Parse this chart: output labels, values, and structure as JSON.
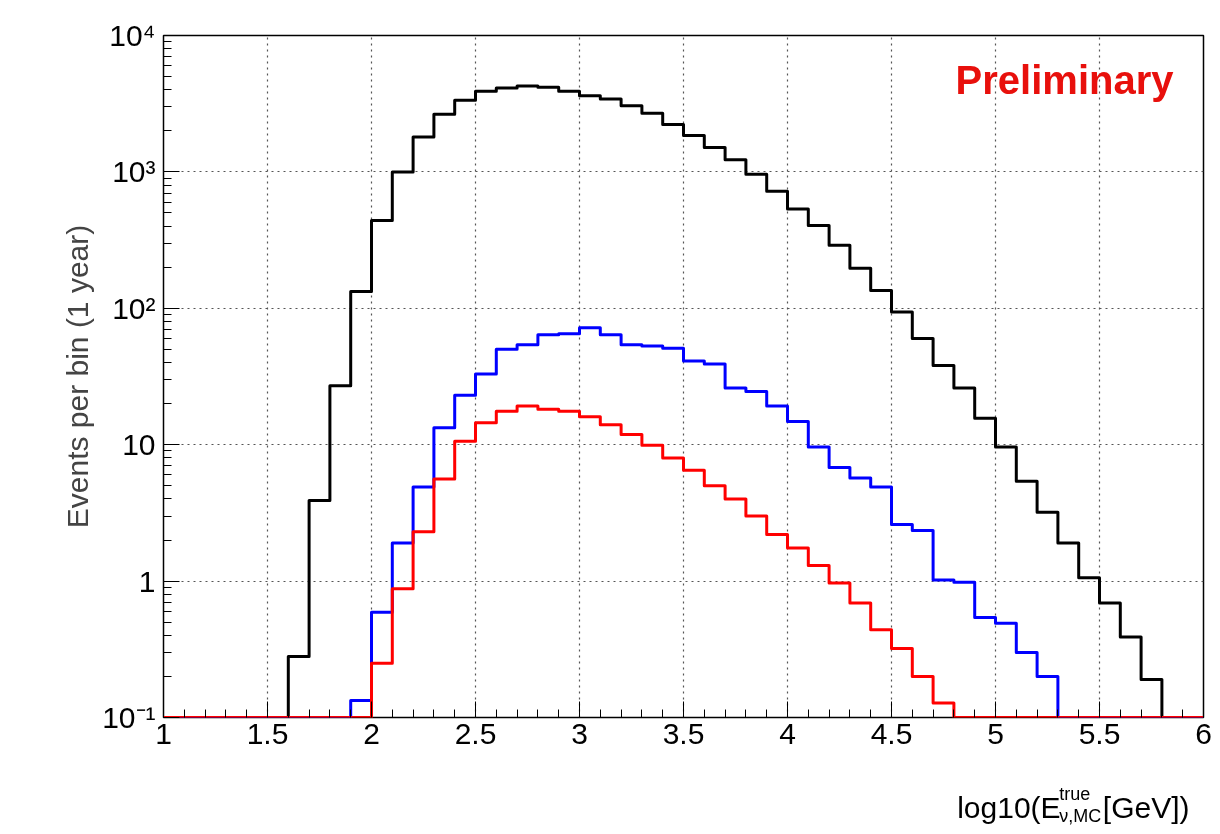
{
  "chart_data": {
    "type": "histogram",
    "ylabel": "Events per bin (1 year)",
    "xlabel": "log10(E$^{true}$$_{ν,MC}$[GeV])",
    "annotations": [
      "Preliminary"
    ],
    "bins": [
      1.0,
      1.1,
      1.2,
      1.3,
      1.4,
      1.5,
      1.6,
      1.7,
      1.8,
      1.9,
      2.0,
      2.1,
      2.2,
      2.3,
      2.4,
      2.5,
      2.6,
      2.7,
      2.8,
      2.9,
      3.0,
      3.1,
      3.2,
      3.3,
      3.4,
      3.5,
      3.6,
      3.7,
      3.8,
      3.9,
      4.0,
      4.1,
      4.2,
      4.3,
      4.4,
      4.5,
      4.6,
      4.7,
      4.8,
      4.9,
      5.0,
      5.1,
      5.2,
      5.3,
      5.4,
      5.5,
      5.6,
      5.7,
      5.8,
      5.9,
      6.0
    ],
    "series": [
      {
        "color": "#000000",
        "values": [
          0.1,
          0.1,
          0.1,
          0.1,
          0.1,
          0.1,
          0.28,
          3.9,
          27,
          133,
          440,
          1000,
          1800,
          2650,
          3350,
          3900,
          4130,
          4270,
          4170,
          3900,
          3610,
          3430,
          3050,
          2690,
          2230,
          1850,
          1510,
          1230,
          960,
          720,
          535,
          404,
          290,
          197,
          135,
          94,
          60,
          38,
          26,
          15.6,
          9.6,
          5.4,
          3.2,
          1.9,
          1.06,
          0.69,
          0.39,
          0.19,
          0.1,
          0.1
        ]
      },
      {
        "color": "#0000ff",
        "values": [
          0.1,
          0.1,
          0.1,
          0.1,
          0.1,
          0.1,
          0.1,
          0.1,
          0.1,
          0.133,
          0.59,
          1.9,
          4.9,
          13.3,
          23,
          33,
          50,
          54,
          64,
          65,
          72,
          64,
          54,
          53,
          51,
          41,
          39,
          26,
          24.6,
          19.2,
          14.8,
          9.6,
          6.8,
          5.7,
          4.9,
          2.6,
          2.35,
          1.02,
          0.98,
          0.54,
          0.49,
          0.3,
          0.2,
          0.1,
          0.1,
          0.1,
          0.1,
          0.1,
          0.1,
          0.1
        ]
      },
      {
        "color": "#ff0000",
        "values": [
          0.1,
          0.1,
          0.1,
          0.1,
          0.1,
          0.1,
          0.1,
          0.1,
          0.1,
          0.1,
          0.25,
          0.88,
          2.3,
          5.6,
          10.6,
          14.5,
          17.6,
          19.2,
          18.2,
          17.6,
          16,
          14,
          11.9,
          9.9,
          8,
          6.5,
          5,
          4,
          3,
          2.2,
          1.75,
          1.3,
          0.97,
          0.69,
          0.44,
          0.32,
          0.2,
          0.128,
          0.1,
          0.1,
          0.1,
          0.1,
          0.1,
          0.1,
          0.1,
          0.1,
          0.1,
          0.1,
          0.1,
          0.1
        ]
      }
    ],
    "xlim": [
      1,
      6
    ],
    "xticks": [
      1,
      1.5,
      2,
      2.5,
      3,
      3.5,
      4,
      4.5,
      5,
      5.5,
      6
    ],
    "ylim": [
      0.1,
      10000
    ],
    "yticks": [
      {
        "value": 0.1,
        "label": "10⁻¹"
      },
      1,
      10,
      {
        "value": 100,
        "label": "10²"
      },
      {
        "value": 1000,
        "label": "10³"
      },
      {
        "value": 10000,
        "label": "10⁴"
      }
    ],
    "log": "y",
    "grid": true,
    "line_style": "solid"
  }
}
